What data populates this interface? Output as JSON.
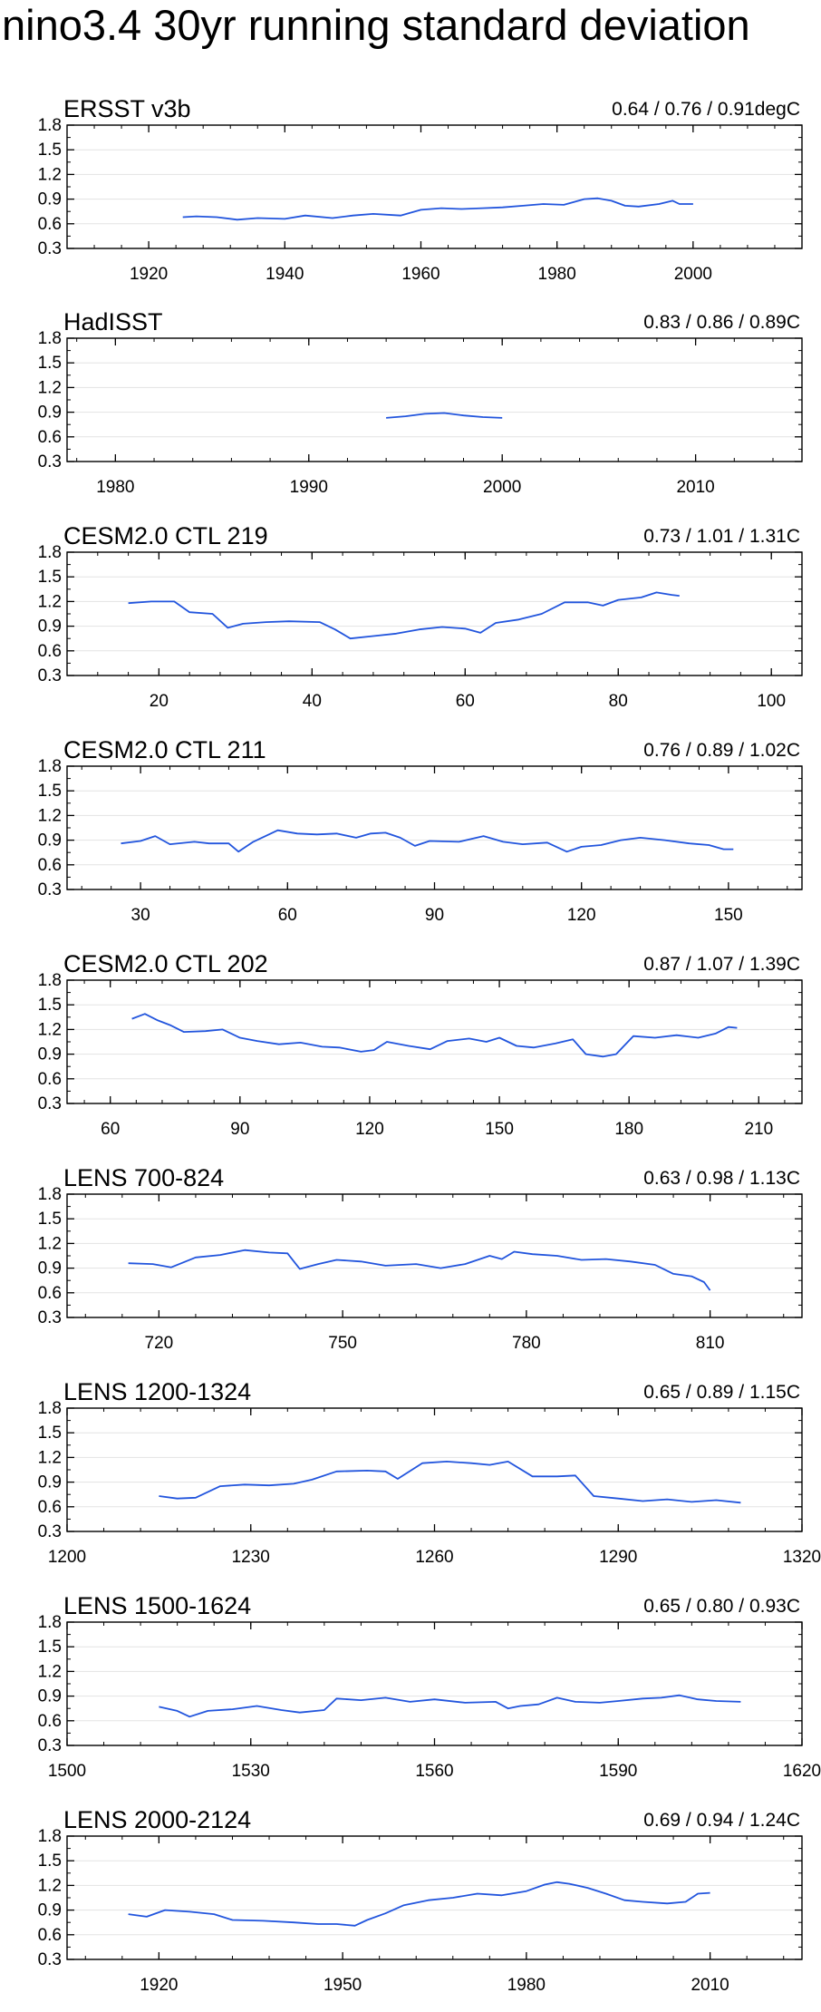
{
  "figure": {
    "title": "nino3.4 30yr running standard deviation",
    "series_color": "#2255dd"
  },
  "chart_data": [
    {
      "type": "line",
      "title": "ERSST v3b",
      "stats": "0.64 / 0.76 / 0.91degC",
      "xlim": [
        1908,
        2016
      ],
      "ylim": [
        0.3,
        1.8
      ],
      "xticks": [
        1920,
        1940,
        1960,
        1980,
        2000
      ],
      "yticks": [
        0.3,
        0.6,
        0.9,
        1.2,
        1.5,
        1.8
      ],
      "ytick_labels": [
        "0.3",
        "0.6",
        "0.9",
        "1.2",
        "1.5",
        "1.8"
      ],
      "x": [
        1925,
        1927,
        1930,
        1933,
        1936,
        1940,
        1943,
        1947,
        1950,
        1953,
        1957,
        1960,
        1963,
        1966,
        1969,
        1972,
        1975,
        1978,
        1981,
        1984,
        1986,
        1988,
        1990,
        1992,
        1995,
        1997,
        1998,
        2000
      ],
      "y": [
        0.68,
        0.69,
        0.68,
        0.65,
        0.67,
        0.66,
        0.7,
        0.67,
        0.7,
        0.72,
        0.7,
        0.77,
        0.79,
        0.78,
        0.79,
        0.8,
        0.82,
        0.84,
        0.83,
        0.9,
        0.91,
        0.88,
        0.82,
        0.81,
        0.84,
        0.88,
        0.84,
        0.84
      ]
    },
    {
      "type": "line",
      "title": "HadISST",
      "stats": "0.83 / 0.86 / 0.89C",
      "xlim": [
        1977.5,
        2015.5
      ],
      "ylim": [
        0.3,
        1.8
      ],
      "xticks": [
        1980,
        1990,
        2000,
        2010
      ],
      "yticks": [
        0.3,
        0.6,
        0.9,
        1.2,
        1.5,
        1.8
      ],
      "ytick_labels": [
        "0.3",
        "0.6",
        "0.9",
        "1.2",
        "1.5",
        "1.8"
      ],
      "x": [
        1994,
        1995,
        1996,
        1997,
        1998,
        1999,
        2000
      ],
      "y": [
        0.83,
        0.85,
        0.88,
        0.89,
        0.86,
        0.84,
        0.83
      ]
    },
    {
      "type": "line",
      "title": "CESM2.0 CTL 219",
      "stats": "0.73 / 1.01 / 1.31C",
      "xlim": [
        8,
        104
      ],
      "ylim": [
        0.3,
        1.8
      ],
      "xticks": [
        20,
        40,
        60,
        80,
        100
      ],
      "yticks": [
        0.3,
        0.6,
        0.9,
        1.2,
        1.5,
        1.8
      ],
      "ytick_labels": [
        "0.3",
        "0.6",
        "0.9",
        "1.2",
        "1.5",
        "1.8"
      ],
      "x": [
        16,
        19,
        22,
        24,
        27,
        29,
        31,
        34,
        37,
        41,
        43,
        45,
        48,
        51,
        54,
        57,
        60,
        62,
        64,
        67,
        70,
        73,
        76,
        78,
        80,
        83,
        85,
        87,
        88
      ],
      "y": [
        1.18,
        1.2,
        1.2,
        1.07,
        1.05,
        0.88,
        0.93,
        0.95,
        0.96,
        0.95,
        0.86,
        0.75,
        0.78,
        0.81,
        0.86,
        0.89,
        0.87,
        0.82,
        0.94,
        0.98,
        1.05,
        1.19,
        1.19,
        1.15,
        1.22,
        1.25,
        1.31,
        1.28,
        1.27
      ]
    },
    {
      "type": "line",
      "title": "CESM2.0 CTL 211",
      "stats": "0.76 / 0.89 / 1.02C",
      "xlim": [
        15,
        165
      ],
      "ylim": [
        0.3,
        1.8
      ],
      "xticks": [
        30,
        60,
        90,
        120,
        150
      ],
      "yticks": [
        0.3,
        0.6,
        0.9,
        1.2,
        1.5,
        1.8
      ],
      "ytick_labels": [
        "0.3",
        "0.6",
        "0.9",
        "1.2",
        "1.5",
        "1.8"
      ],
      "x": [
        26,
        30,
        33,
        36,
        41,
        44,
        48,
        50,
        53,
        58,
        62,
        66,
        70,
        74,
        77,
        80,
        83,
        86,
        89,
        95,
        100,
        104,
        108,
        113,
        117,
        120,
        124,
        128,
        132,
        137,
        142,
        146,
        149,
        151
      ],
      "y": [
        0.86,
        0.89,
        0.95,
        0.85,
        0.88,
        0.86,
        0.86,
        0.76,
        0.88,
        1.02,
        0.98,
        0.97,
        0.98,
        0.93,
        0.98,
        0.99,
        0.93,
        0.83,
        0.89,
        0.88,
        0.95,
        0.88,
        0.85,
        0.87,
        0.76,
        0.82,
        0.84,
        0.9,
        0.93,
        0.9,
        0.86,
        0.84,
        0.79,
        0.79
      ]
    },
    {
      "type": "line",
      "title": "CESM2.0 CTL 202",
      "stats": "0.87 / 1.07 / 1.39C",
      "xlim": [
        50,
        220
      ],
      "ylim": [
        0.3,
        1.8
      ],
      "xticks": [
        60,
        90,
        120,
        150,
        180,
        210
      ],
      "yticks": [
        0.3,
        0.6,
        0.9,
        1.2,
        1.5,
        1.8
      ],
      "ytick_labels": [
        "0.3",
        "0.6",
        "0.9",
        "1.2",
        "1.5",
        "1.8"
      ],
      "x": [
        65,
        68,
        71,
        74,
        77,
        82,
        86,
        90,
        94,
        99,
        104,
        109,
        113,
        118,
        121,
        124,
        129,
        134,
        138,
        143,
        147,
        150,
        154,
        158,
        163,
        167,
        170,
        174,
        177,
        181,
        186,
        191,
        196,
        200,
        203,
        205
      ],
      "y": [
        1.33,
        1.39,
        1.31,
        1.25,
        1.17,
        1.18,
        1.2,
        1.1,
        1.06,
        1.02,
        1.04,
        0.99,
        0.98,
        0.93,
        0.95,
        1.05,
        1.0,
        0.96,
        1.06,
        1.09,
        1.05,
        1.1,
        1.0,
        0.98,
        1.03,
        1.08,
        0.9,
        0.87,
        0.9,
        1.12,
        1.1,
        1.13,
        1.1,
        1.15,
        1.23,
        1.22
      ]
    },
    {
      "type": "line",
      "title": "LENS 700-824",
      "stats": "0.63 / 0.98 / 1.13C",
      "xlim": [
        705,
        825
      ],
      "ylim": [
        0.3,
        1.8
      ],
      "xticks": [
        720,
        750,
        780,
        810
      ],
      "yticks": [
        0.3,
        0.6,
        0.9,
        1.2,
        1.5,
        1.8
      ],
      "ytick_labels": [
        "0.3",
        "0.6",
        "0.9",
        "1.2",
        "1.5",
        "1.8"
      ],
      "x": [
        715,
        719,
        722,
        726,
        730,
        734,
        738,
        741,
        743,
        746,
        749,
        753,
        757,
        762,
        766,
        770,
        774,
        776,
        778,
        781,
        785,
        789,
        793,
        797,
        801,
        804,
        807,
        809,
        810
      ],
      "y": [
        0.96,
        0.95,
        0.91,
        1.03,
        1.06,
        1.12,
        1.09,
        1.08,
        0.89,
        0.95,
        1.0,
        0.98,
        0.93,
        0.95,
        0.9,
        0.95,
        1.05,
        1.01,
        1.1,
        1.07,
        1.05,
        1.0,
        1.01,
        0.98,
        0.94,
        0.83,
        0.8,
        0.73,
        0.63
      ]
    },
    {
      "type": "line",
      "title": "LENS 1200-1324",
      "stats": "0.65 / 0.89 / 1.15C",
      "xlim": [
        1200,
        1320
      ],
      "ylim": [
        0.3,
        1.8
      ],
      "xticks": [
        1200,
        1230,
        1260,
        1290,
        1320
      ],
      "yticks": [
        0.3,
        0.6,
        0.9,
        1.2,
        1.5,
        1.8
      ],
      "ytick_labels": [
        "0.3",
        "0.6",
        "0.9",
        "1.2",
        "1.5",
        "1.8"
      ],
      "x": [
        1215,
        1218,
        1221,
        1225,
        1229,
        1233,
        1237,
        1240,
        1244,
        1249,
        1252,
        1254,
        1258,
        1262,
        1266,
        1269,
        1272,
        1276,
        1280,
        1283,
        1286,
        1290,
        1294,
        1298,
        1302,
        1306,
        1310
      ],
      "y": [
        0.73,
        0.7,
        0.71,
        0.85,
        0.87,
        0.86,
        0.88,
        0.93,
        1.03,
        1.04,
        1.03,
        0.94,
        1.13,
        1.15,
        1.13,
        1.11,
        1.15,
        0.97,
        0.97,
        0.98,
        0.73,
        0.7,
        0.67,
        0.69,
        0.66,
        0.68,
        0.65
      ]
    },
    {
      "type": "line",
      "title": "LENS 1500-1624",
      "stats": "0.65 / 0.80 / 0.93C",
      "xlim": [
        1500,
        1620
      ],
      "ylim": [
        0.3,
        1.8
      ],
      "xticks": [
        1500,
        1530,
        1560,
        1590,
        1620
      ],
      "yticks": [
        0.3,
        0.6,
        0.9,
        1.2,
        1.5,
        1.8
      ],
      "ytick_labels": [
        "0.3",
        "0.6",
        "0.9",
        "1.2",
        "1.5",
        "1.8"
      ],
      "x": [
        1515,
        1518,
        1520,
        1523,
        1527,
        1531,
        1535,
        1538,
        1542,
        1544,
        1548,
        1552,
        1556,
        1560,
        1565,
        1570,
        1572,
        1574,
        1577,
        1580,
        1583,
        1587,
        1590,
        1594,
        1597,
        1600,
        1603,
        1606,
        1610
      ],
      "y": [
        0.77,
        0.72,
        0.65,
        0.72,
        0.74,
        0.78,
        0.73,
        0.7,
        0.73,
        0.87,
        0.85,
        0.88,
        0.83,
        0.86,
        0.82,
        0.83,
        0.75,
        0.78,
        0.8,
        0.88,
        0.83,
        0.82,
        0.84,
        0.87,
        0.88,
        0.91,
        0.86,
        0.84,
        0.83
      ]
    },
    {
      "type": "line",
      "title": "LENS 2000-2124",
      "stats": "0.69 / 0.94 / 1.24C",
      "xlim": [
        1905,
        2025
      ],
      "ylim": [
        0.3,
        1.8
      ],
      "xticks": [
        1920,
        1950,
        1980,
        2010
      ],
      "yticks": [
        0.3,
        0.6,
        0.9,
        1.2,
        1.5,
        1.8
      ],
      "ytick_labels": [
        "0.3",
        "0.6",
        "0.9",
        "1.2",
        "1.5",
        "1.8"
      ],
      "x": [
        1915,
        1918,
        1921,
        1925,
        1929,
        1932,
        1937,
        1942,
        1946,
        1949,
        1952,
        1954,
        1957,
        1960,
        1964,
        1968,
        1972,
        1976,
        1980,
        1983,
        1985,
        1987,
        1990,
        1993,
        1996,
        1999,
        2003,
        2006,
        2008,
        2010
      ],
      "y": [
        0.85,
        0.82,
        0.9,
        0.88,
        0.85,
        0.78,
        0.77,
        0.75,
        0.73,
        0.73,
        0.71,
        0.78,
        0.86,
        0.96,
        1.02,
        1.05,
        1.1,
        1.08,
        1.13,
        1.21,
        1.24,
        1.22,
        1.17,
        1.1,
        1.02,
        1.0,
        0.98,
        1.0,
        1.1,
        1.11
      ]
    }
  ]
}
